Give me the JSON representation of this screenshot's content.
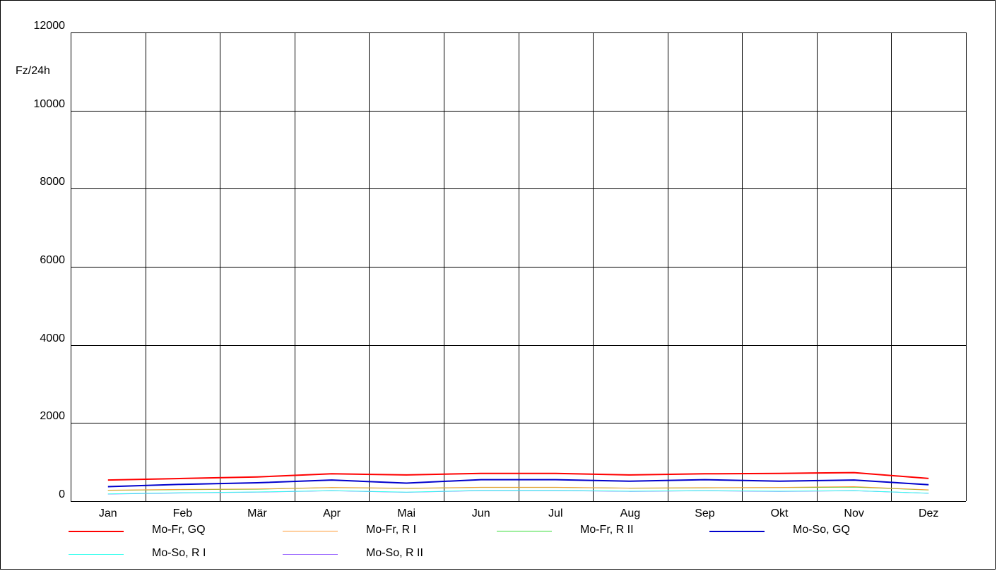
{
  "chart_data": {
    "type": "line",
    "ylabel": "Fz/24h",
    "ylim": [
      0,
      12000
    ],
    "yticks": [
      "0",
      "2000",
      "4000",
      "6000",
      "8000",
      "10000",
      "12000"
    ],
    "categories": [
      "Jan",
      "Feb",
      "Mär",
      "Apr",
      "Mai",
      "Jun",
      "Jul",
      "Aug",
      "Sep",
      "Okt",
      "Nov",
      "Dez"
    ],
    "grid": true,
    "legend_position": "bottom",
    "series": [
      {
        "name": "Mo-Fr, GQ",
        "color": "#ff0000",
        "width": 2,
        "values": [
          540,
          580,
          620,
          700,
          670,
          710,
          710,
          670,
          700,
          710,
          730,
          580
        ]
      },
      {
        "name": "Mo-Fr, R I",
        "color": "#ff9933",
        "width": 1,
        "values": [
          280,
          300,
          310,
          350,
          330,
          355,
          355,
          335,
          345,
          350,
          370,
          290
        ]
      },
      {
        "name": "Mo-Fr, R II",
        "color": "#33dd33",
        "width": 1,
        "values": [
          275,
          295,
          305,
          345,
          325,
          350,
          350,
          330,
          340,
          345,
          360,
          285
        ]
      },
      {
        "name": "Mo-So, GQ",
        "color": "#0000cc",
        "width": 2,
        "values": [
          370,
          430,
          470,
          540,
          460,
          550,
          550,
          510,
          550,
          510,
          540,
          420
        ]
      },
      {
        "name": "Mo-So, R I",
        "color": "#33ffee",
        "width": 1,
        "values": [
          185,
          215,
          235,
          270,
          230,
          275,
          275,
          255,
          270,
          255,
          270,
          205
        ]
      },
      {
        "name": "Mo-So, R II",
        "color": "#9966ff",
        "width": 1,
        "values": [
          180,
          210,
          230,
          265,
          225,
          270,
          270,
          250,
          265,
          250,
          265,
          200
        ]
      }
    ]
  }
}
